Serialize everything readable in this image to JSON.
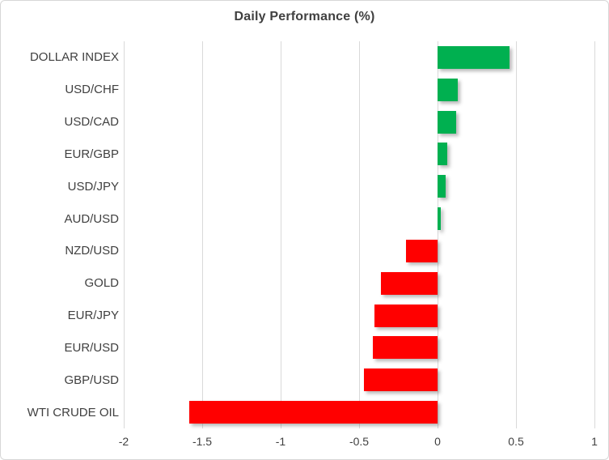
{
  "title": "Daily Performance (%)",
  "colors": {
    "positive": "#00B050",
    "negative": "#FF0000",
    "gridline": "#D9D9D9",
    "text": "#404040",
    "border": "#D7D7D7",
    "background": "#FFFFFF"
  },
  "chart_data": {
    "type": "bar",
    "orientation": "horizontal",
    "title": "Daily Performance (%)",
    "categories": [
      "DOLLAR INDEX",
      "USD/CHF",
      "USD/CAD",
      "EUR/GBP",
      "USD/JPY",
      "AUD/USD",
      "NZD/USD",
      "GOLD",
      "EUR/JPY",
      "EUR/USD",
      "GBP/USD",
      "WTI CRUDE OIL"
    ],
    "values": [
      0.46,
      0.13,
      0.12,
      0.06,
      0.05,
      0.02,
      -0.2,
      -0.36,
      -0.4,
      -0.41,
      -0.47,
      -1.58
    ],
    "xlim": [
      -2,
      1
    ],
    "xticks": [
      -2,
      -1.5,
      -1,
      -0.5,
      0,
      0.5,
      1
    ],
    "xtick_labels": [
      "-2",
      "-1.5",
      "-1",
      "-0.5",
      "0",
      "0.5",
      "1"
    ],
    "grid": "vertical",
    "legend": "none",
    "positive_color": "#00B050",
    "negative_color": "#FF0000"
  }
}
